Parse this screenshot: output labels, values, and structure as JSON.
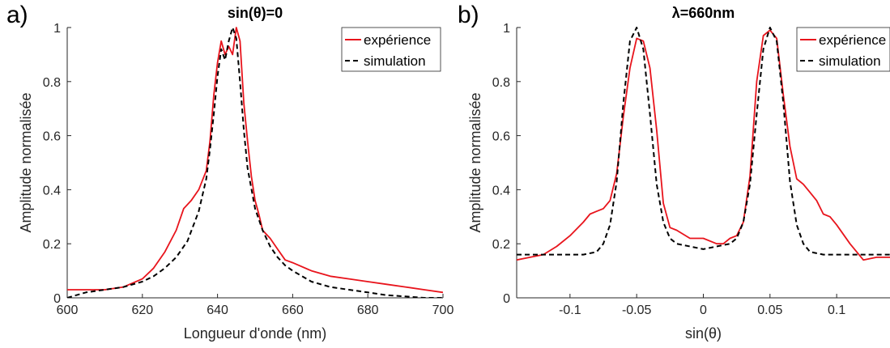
{
  "colors": {
    "experience": "#e8141c",
    "simulation": "#000000",
    "axis": "#262626"
  },
  "chart_data": [
    {
      "type": "line",
      "panel_label": "a)",
      "title": "sin(θ)=0",
      "xlabel": "Longueur d'onde (nm)",
      "ylabel": "Amplitude normalisée",
      "xlim": [
        600,
        700
      ],
      "ylim": [
        0,
        1
      ],
      "xticks": [
        600,
        620,
        640,
        660,
        680,
        700
      ],
      "yticks": [
        0,
        0.2,
        0.4,
        0.6,
        0.8,
        1
      ],
      "xtick_labels": [
        "600",
        "620",
        "640",
        "660",
        "680",
        "700"
      ],
      "ytick_labels": [
        "0",
        "0.2",
        "0.4",
        "0.6",
        "0.8",
        "1"
      ],
      "legend": {
        "position": "top-right",
        "entries": [
          "expérience",
          "simulation"
        ]
      },
      "grid": false,
      "series": [
        {
          "name": "expérience",
          "style": "solid",
          "x": [
            600,
            605,
            610,
            615,
            620,
            623,
            626,
            629,
            631,
            633,
            635,
            637,
            638,
            639,
            640,
            641,
            642,
            643,
            644,
            645,
            646,
            647,
            648,
            649,
            650,
            651,
            652,
            654,
            656,
            658,
            660,
            665,
            670,
            675,
            680,
            685,
            690,
            695,
            700
          ],
          "y": [
            0.03,
            0.03,
            0.03,
            0.04,
            0.07,
            0.11,
            0.17,
            0.25,
            0.33,
            0.36,
            0.4,
            0.47,
            0.58,
            0.75,
            0.87,
            0.95,
            0.9,
            0.93,
            0.9,
            1.0,
            0.95,
            0.72,
            0.58,
            0.45,
            0.36,
            0.31,
            0.25,
            0.22,
            0.18,
            0.14,
            0.13,
            0.1,
            0.08,
            0.07,
            0.06,
            0.05,
            0.04,
            0.03,
            0.02
          ]
        },
        {
          "name": "simulation",
          "style": "dashed",
          "x": [
            600,
            605,
            610,
            615,
            620,
            623,
            626,
            629,
            632,
            635,
            637,
            638,
            639,
            640,
            641,
            642,
            643,
            644,
            645,
            646,
            647,
            648,
            650,
            652,
            654,
            656,
            658,
            660,
            665,
            670,
            675,
            680,
            685,
            690,
            695,
            700
          ],
          "y": [
            0.0,
            0.02,
            0.03,
            0.04,
            0.06,
            0.08,
            0.11,
            0.15,
            0.21,
            0.32,
            0.44,
            0.55,
            0.68,
            0.82,
            0.92,
            0.88,
            0.95,
            1.0,
            0.96,
            0.8,
            0.62,
            0.48,
            0.33,
            0.25,
            0.19,
            0.15,
            0.12,
            0.1,
            0.06,
            0.04,
            0.03,
            0.02,
            0.01,
            0.005,
            0.0,
            0.0
          ]
        }
      ]
    },
    {
      "type": "line",
      "panel_label": "b)",
      "title": "λ=660nm",
      "xlabel": "sin(θ)",
      "ylabel": "Amplitude normalisée",
      "xlim": [
        -0.14,
        0.14
      ],
      "ylim": [
        0,
        1
      ],
      "xticks": [
        -0.1,
        -0.05,
        0,
        0.05,
        0.1
      ],
      "yticks": [
        0,
        0.2,
        0.4,
        0.6,
        0.8,
        1
      ],
      "xtick_labels": [
        "-0.1",
        "-0.05",
        "0",
        "0.05",
        "0.1"
      ],
      "ytick_labels": [
        "0",
        "0.2",
        "0.4",
        "0.6",
        "0.8",
        "1"
      ],
      "legend": {
        "position": "top-right",
        "entries": [
          "expérience",
          "simulation"
        ]
      },
      "grid": false,
      "series": [
        {
          "name": "expérience",
          "style": "solid",
          "x": [
            -0.14,
            -0.13,
            -0.12,
            -0.11,
            -0.1,
            -0.09,
            -0.085,
            -0.08,
            -0.075,
            -0.07,
            -0.065,
            -0.06,
            -0.055,
            -0.05,
            -0.045,
            -0.04,
            -0.035,
            -0.03,
            -0.025,
            -0.02,
            -0.01,
            0,
            0.01,
            0.015,
            0.02,
            0.025,
            0.03,
            0.035,
            0.04,
            0.045,
            0.05,
            0.055,
            0.06,
            0.065,
            0.07,
            0.075,
            0.08,
            0.085,
            0.09,
            0.095,
            0.1,
            0.11,
            0.12,
            0.13,
            0.14
          ],
          "y": [
            0.14,
            0.15,
            0.16,
            0.19,
            0.23,
            0.28,
            0.31,
            0.32,
            0.33,
            0.36,
            0.46,
            0.67,
            0.85,
            0.96,
            0.95,
            0.85,
            0.62,
            0.35,
            0.26,
            0.25,
            0.22,
            0.22,
            0.2,
            0.2,
            0.22,
            0.23,
            0.28,
            0.45,
            0.8,
            0.97,
            0.99,
            0.96,
            0.75,
            0.56,
            0.44,
            0.42,
            0.39,
            0.36,
            0.31,
            0.3,
            0.27,
            0.2,
            0.14,
            0.15,
            0.15
          ]
        },
        {
          "name": "simulation",
          "style": "dashed",
          "x": [
            -0.14,
            -0.12,
            -0.1,
            -0.09,
            -0.08,
            -0.075,
            -0.07,
            -0.065,
            -0.06,
            -0.055,
            -0.05,
            -0.045,
            -0.04,
            -0.035,
            -0.03,
            -0.025,
            -0.02,
            -0.01,
            0,
            0.01,
            0.02,
            0.025,
            0.03,
            0.035,
            0.04,
            0.045,
            0.05,
            0.055,
            0.06,
            0.065,
            0.07,
            0.075,
            0.08,
            0.09,
            0.1,
            0.12,
            0.14
          ],
          "y": [
            0.16,
            0.16,
            0.16,
            0.16,
            0.17,
            0.2,
            0.27,
            0.43,
            0.72,
            0.95,
            1.0,
            0.92,
            0.68,
            0.42,
            0.28,
            0.22,
            0.2,
            0.19,
            0.18,
            0.19,
            0.2,
            0.22,
            0.28,
            0.42,
            0.68,
            0.92,
            1.0,
            0.95,
            0.72,
            0.43,
            0.27,
            0.2,
            0.17,
            0.16,
            0.16,
            0.16,
            0.16
          ]
        }
      ]
    }
  ]
}
